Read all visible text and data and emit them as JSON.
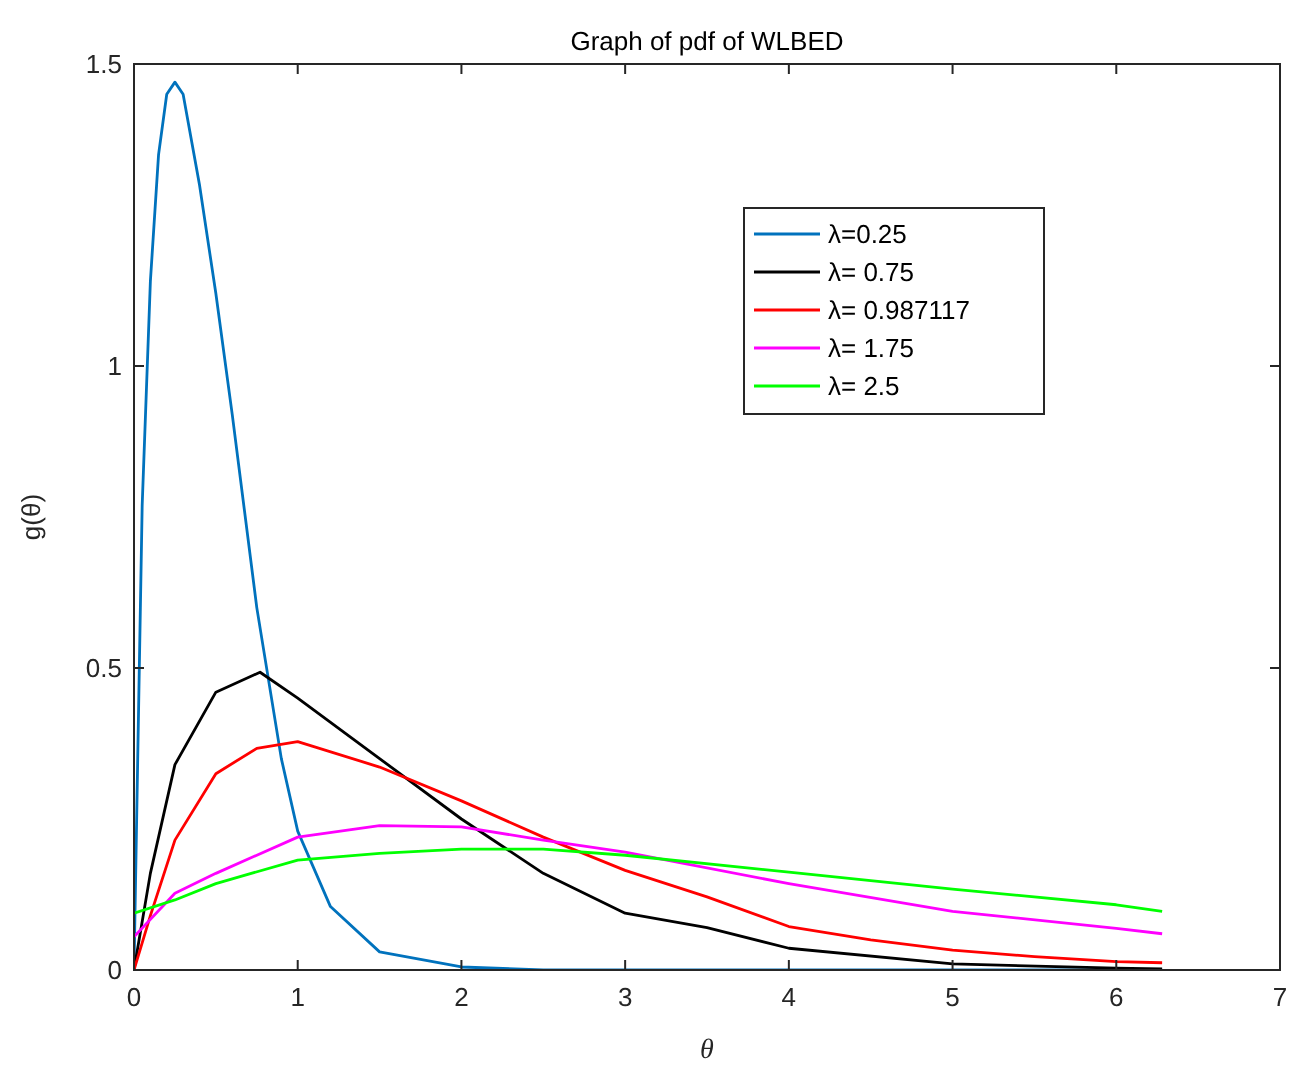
{
  "chart_data": {
    "type": "line",
    "title": "Graph of pdf of WLBED",
    "xlabel": "θ",
    "ylabel": "g(θ)",
    "xlim": [
      0,
      7
    ],
    "ylim": [
      0,
      1.5
    ],
    "xticks": [
      0,
      1,
      2,
      3,
      4,
      5,
      6,
      7
    ],
    "yticks": [
      0,
      0.5,
      1,
      1.5
    ],
    "grid": false,
    "legend": "top right",
    "marker": "none",
    "line_style": "solid",
    "series": [
      {
        "name": "λ=0.25",
        "color": "#0072bd",
        "x": [
          0,
          0.05,
          0.1,
          0.15,
          0.2,
          0.25,
          0.3,
          0.4,
          0.5,
          0.6,
          0.75,
          0.9,
          1,
          1.2,
          1.5,
          2,
          2.5,
          3,
          4,
          5,
          6,
          6.28
        ],
        "values": [
          0,
          0.77,
          1.14,
          1.35,
          1.45,
          1.47,
          1.45,
          1.3,
          1.12,
          0.92,
          0.6,
          0.35,
          0.23,
          0.105,
          0.03,
          0.005,
          0,
          0,
          0,
          0,
          0,
          0
        ]
      },
      {
        "name": "λ= 0.75",
        "color": "#000000",
        "x": [
          0,
          0.1,
          0.25,
          0.5,
          0.77,
          1,
          1.5,
          2,
          2.5,
          3,
          3.5,
          4,
          5,
          6,
          6.28
        ],
        "values": [
          0,
          0.16,
          0.34,
          0.46,
          0.493,
          0.45,
          0.35,
          0.25,
          0.16,
          0.094,
          0.07,
          0.036,
          0.01,
          0.003,
          0.002
        ]
      },
      {
        "name": "λ= 0.987117",
        "color": "#ff0000",
        "x": [
          0,
          0.1,
          0.25,
          0.5,
          0.75,
          1,
          1.5,
          2,
          2.5,
          3,
          3.5,
          4,
          4.5,
          5,
          5.5,
          6,
          6.28
        ],
        "values": [
          0,
          0.09,
          0.215,
          0.325,
          0.367,
          0.378,
          0.336,
          0.28,
          0.22,
          0.165,
          0.121,
          0.072,
          0.05,
          0.033,
          0.022,
          0.014,
          0.012
        ]
      },
      {
        "name": "λ= 1.75",
        "color": "#ff00ff",
        "x": [
          0,
          0.25,
          0.5,
          1,
          1.5,
          2,
          2.5,
          3,
          4,
          5,
          6,
          6.28
        ],
        "values": [
          0.055,
          0.127,
          0.16,
          0.22,
          0.239,
          0.237,
          0.215,
          0.195,
          0.143,
          0.097,
          0.069,
          0.06
        ]
      },
      {
        "name": "λ= 2.5",
        "color": "#00ff00",
        "x": [
          0,
          0.25,
          0.5,
          1,
          1.5,
          2,
          2.5,
          3,
          4,
          5,
          6,
          6.28
        ],
        "values": [
          0.094,
          0.116,
          0.143,
          0.182,
          0.193,
          0.2,
          0.2,
          0.19,
          0.162,
          0.134,
          0.108,
          0.097
        ]
      }
    ]
  }
}
